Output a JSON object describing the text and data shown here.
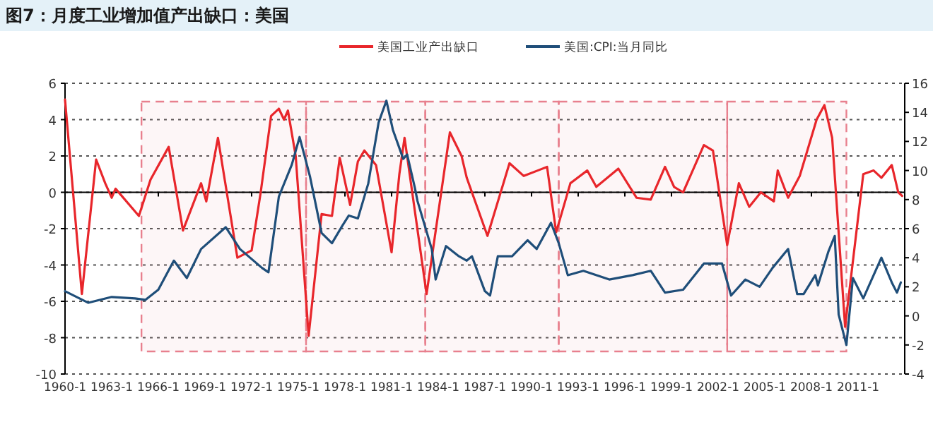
{
  "chart_data": {
    "type": "line",
    "title": "图7：月度工业增加值产出缺口：美国",
    "xlim": [
      "1960-01",
      "2014-01"
    ],
    "xticks": [
      {
        "value": "1960-01",
        "label": "1960-1"
      },
      {
        "value": "1963-01",
        "label": "1963-1"
      },
      {
        "value": "1966-01",
        "label": "1966-1"
      },
      {
        "value": "1969-01",
        "label": "1969-1"
      },
      {
        "value": "1972-01",
        "label": "1972-1"
      },
      {
        "value": "1975-01",
        "label": "1975-1"
      },
      {
        "value": "1978-01",
        "label": "1978-1"
      },
      {
        "value": "1981-01",
        "label": "1981-1"
      },
      {
        "value": "1984-01",
        "label": "1984-1"
      },
      {
        "value": "1987-01",
        "label": "1987-1"
      },
      {
        "value": "1990-01",
        "label": "1990-1"
      },
      {
        "value": "1993-01",
        "label": "1993-1"
      },
      {
        "value": "1996-01",
        "label": "1996-1"
      },
      {
        "value": "1999-01",
        "label": "1999-1"
      },
      {
        "value": "2002-01",
        "label": "2002-1"
      },
      {
        "value": "2005-01",
        "label": "2005-1"
      },
      {
        "value": "2008-01",
        "label": "2008-1"
      },
      {
        "value": "2011-01",
        "label": "2011-1"
      }
    ],
    "ylim": [
      -10,
      6
    ],
    "yticks": [
      -10,
      -8,
      -6,
      -4,
      -2,
      0,
      2,
      4,
      6
    ],
    "y2lim": [
      -4,
      16
    ],
    "y2ticks": [
      -4,
      -2,
      0,
      2,
      4,
      6,
      8,
      10,
      12,
      14,
      16
    ],
    "grid": "y",
    "legend": "top",
    "bands": [
      {
        "axis": "x",
        "from": "1964-12",
        "to": "1975-07",
        "color": "#e8808e"
      },
      {
        "axis": "x",
        "from": "1975-07",
        "to": "1983-03",
        "color": "#e8808e"
      },
      {
        "axis": "x",
        "from": "1983-03",
        "to": "1991-10",
        "color": "#e8808e"
      },
      {
        "axis": "x",
        "from": "1991-10",
        "to": "2002-08",
        "color": "#e8808e"
      },
      {
        "axis": "x",
        "from": "2002-08",
        "to": "2010-04",
        "color": "#e8808e"
      }
    ],
    "series": [
      {
        "name": "美国工业产出缺口",
        "color": "#e8262b",
        "x": [
          "1960-01",
          "1961-02",
          "1962-01",
          "1962-08",
          "1963-01",
          "1963-04",
          "1964-10",
          "1965-07",
          "1966-09",
          "1967-08",
          "1968-10",
          "1969-02",
          "1969-11",
          "1971-02",
          "1972-01",
          "1972-08",
          "1973-04",
          "1973-10",
          "1974-02",
          "1974-05",
          "1974-11",
          "1975-09",
          "1976-07",
          "1977-03",
          "1977-09",
          "1978-05",
          "1978-11",
          "1979-04",
          "1980-01",
          "1981-01",
          "1981-07",
          "1981-11",
          "1983-04",
          "1984-10",
          "1985-07",
          "1985-11",
          "1987-03",
          "1988-08",
          "1989-07",
          "1991-01",
          "1991-08",
          "1992-07",
          "1993-08",
          "1994-03",
          "1995-08",
          "1996-10",
          "1997-09",
          "1998-08",
          "1999-03",
          "1999-10",
          "2001-02",
          "2001-09",
          "2002-08",
          "2003-05",
          "2004-01",
          "2004-10",
          "2005-08",
          "2005-11",
          "2006-07",
          "2007-04",
          "2008-05",
          "2008-11",
          "2009-05",
          "2010-03",
          "2011-05",
          "2012-01",
          "2012-07",
          "2013-03",
          "2013-08",
          "2013-11"
        ],
        "values": [
          5.1,
          -5.6,
          1.8,
          0.5,
          -0.3,
          0.2,
          -1.3,
          0.7,
          2.5,
          -2.1,
          0.5,
          -0.5,
          3.0,
          -3.6,
          -3.2,
          0.0,
          4.2,
          4.6,
          4.0,
          4.5,
          2.0,
          -7.9,
          -1.2,
          -1.3,
          1.9,
          -0.7,
          1.7,
          2.3,
          1.5,
          -3.3,
          1.0,
          3.0,
          -5.6,
          3.3,
          2.0,
          0.8,
          -2.4,
          1.6,
          0.9,
          1.4,
          -2.2,
          0.5,
          1.2,
          0.3,
          1.3,
          -0.3,
          -0.4,
          1.4,
          0.3,
          0.0,
          2.6,
          2.3,
          -2.9,
          0.5,
          -0.8,
          0.0,
          -0.5,
          1.2,
          -0.3,
          0.9,
          4.0,
          4.8,
          3.0,
          -7.4,
          1.0,
          1.2,
          0.8,
          1.5,
          0.0,
          -0.2
        ]
      },
      {
        "name": "美国:CPI:当月同比",
        "color": "#1f4e79",
        "axis": "y2",
        "x": [
          "1960-01",
          "1960-10",
          "1961-07",
          "1963-01",
          "1964-07",
          "1965-03",
          "1966-01",
          "1967-01",
          "1967-11",
          "1968-10",
          "1970-05",
          "1971-04",
          "1972-09",
          "1973-02",
          "1973-10",
          "1974-08",
          "1975-02",
          "1975-10",
          "1976-07",
          "1977-03",
          "1977-11",
          "1978-04",
          "1978-11",
          "1979-07",
          "1980-03",
          "1980-09",
          "1981-02",
          "1981-10",
          "1982-01",
          "1982-07",
          "1982-09",
          "1983-02",
          "1983-08",
          "1983-11",
          "1984-07",
          "1985-05",
          "1985-11",
          "1986-03",
          "1987-01",
          "1987-05",
          "1987-11",
          "1988-10",
          "1989-10",
          "1990-05",
          "1991-04",
          "1991-10",
          "1992-05",
          "1993-05",
          "1995-01",
          "1996-07",
          "1997-09",
          "1998-08",
          "1999-10",
          "2001-02",
          "2002-04",
          "2002-11",
          "2003-10",
          "2004-09",
          "2005-07",
          "2006-07",
          "2007-02",
          "2007-07",
          "2008-04",
          "2008-06",
          "2009-02",
          "2009-07",
          "2009-10",
          "2010-04",
          "2010-09",
          "2011-05",
          "2012-07",
          "2013-03",
          "2013-07",
          "2013-10"
        ],
        "values": [
          1.7,
          1.3,
          0.9,
          1.3,
          1.2,
          1.1,
          1.8,
          3.8,
          2.6,
          4.6,
          6.1,
          4.6,
          3.3,
          3.0,
          8.2,
          10.4,
          12.3,
          9.6,
          5.7,
          5.0,
          6.2,
          6.9,
          6.7,
          9.1,
          13.3,
          14.8,
          12.8,
          10.8,
          11.1,
          8.8,
          7.9,
          6.4,
          4.6,
          2.5,
          4.8,
          4.1,
          3.8,
          4.1,
          1.7,
          1.4,
          4.1,
          4.1,
          5.2,
          4.6,
          6.4,
          5.0,
          2.8,
          3.1,
          2.5,
          2.8,
          3.1,
          1.6,
          1.8,
          3.6,
          3.6,
          1.4,
          2.5,
          2.0,
          3.3,
          4.6,
          1.5,
          1.5,
          2.8,
          2.1,
          4.4,
          5.5,
          0.1,
          -2.0,
          2.6,
          1.2,
          4.0,
          2.3,
          1.6,
          2.3
        ]
      }
    ]
  }
}
